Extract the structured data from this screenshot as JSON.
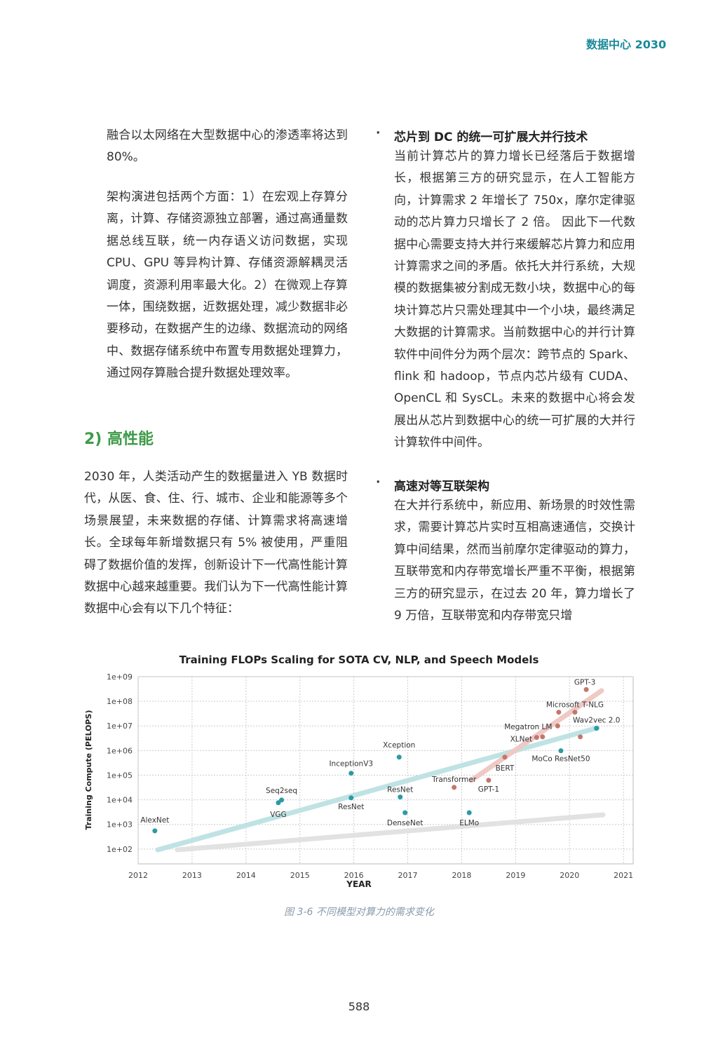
{
  "header": {
    "title": "数据中心 2030"
  },
  "left": {
    "paragraphs": [
      "融合以太网络在大型数据中心的渗透率将达到 80%。",
      "架构演进包括两个方面：1）在宏观上存算分离，计算、存储资源独立部署，通过高通量数据总线互联，统一内存语义访问数据，实现 CPU、GPU 等异构计算、存储资源解耦灵活调度，资源利用率最大化。2）在微观上存算一体，围绕数据，近数据处理，减少数据非必要移动，在数据产生的边缘、数据流动的网络中、数据存储系统中布置专用数据处理算力，通过网存算融合提升数据处理效率。"
    ],
    "section_heading": "2) 高性能",
    "section_text": "2030 年，人类活动产生的数据量进入 YB 数据时代，从医、食、住、行、城市、企业和能源等多个场景展望，未来数据的存储、计算需求将高速增长。全球每年新增数据只有 5% 被使用，严重阻碍了数据价值的发挥，创新设计下一代高性能计算数据中心越来越重要。我们认为下一代高性能计算数据中心会有以下几个特征："
  },
  "right": {
    "bullets": [
      {
        "title": "芯片到 DC 的统一可扩展大并行技术",
        "text": "当前计算芯片的算力增长已经落后于数据增长，根据第三方的研究显示，在人工智能方向，计算需求 2 年增长了 750x，摩尔定律驱动的芯片算力只增长了 2 倍。 因此下一代数据中心需要支持大并行来缓解芯片算力和应用计算需求之间的矛盾。依托大并行系统，大规模的数据集被分割成无数小块，数据中心的每块计算芯片只需处理其中一个小块，最终满足大数据的计算需求。当前数据中心的并行计算软件中间件分为两个层次：跨节点的 Spark、flink 和 hadoop，节点内芯片级有 CUDA、OpenCL 和 SysCL。未来的数据中心将会发展出从芯片到数据中心的统一可扩展的大并行计算软件中间件。"
      },
      {
        "title": "高速对等互联架构",
        "text": "在大并行系统中，新应用、新场景的时效性需求，需要计算芯片实时互相高速通信，交换计算中间结果，然而当前摩尔定律驱动的算力，互联带宽和内存带宽增长严重不平衡，根据第三方的研究显示，在过去 20 年，算力增长了 9 万倍，互联带宽和内存带宽只增"
      }
    ]
  },
  "chart_data": {
    "type": "scatter",
    "title": "Training FLOPs Scaling for SOTA CV, NLP, and Speech Models",
    "xlabel": "YEAR",
    "ylabel": "Training Compute (PELOPS)",
    "xlim": [
      2012,
      2021.18
    ],
    "ylim": [
      25,
      1000000000
    ],
    "log_y": true,
    "grid": true,
    "xticks": [
      2012,
      2013,
      2014,
      2015,
      2016,
      2017,
      2018,
      2019,
      2020,
      2021
    ],
    "yticks": [
      {
        "value": 100,
        "label": "1e+02"
      },
      {
        "value": 1000,
        "label": "1e+03"
      },
      {
        "value": 10000,
        "label": "1e+04"
      },
      {
        "value": 100000,
        "label": "1e+05"
      },
      {
        "value": 1000000,
        "label": "1e+06"
      },
      {
        "value": 10000000,
        "label": "1e+07"
      },
      {
        "value": 100000000,
        "label": "1e+08"
      },
      {
        "value": 1000000000,
        "label": "1e+09"
      }
    ],
    "series": [
      {
        "color": "#2a9ba3",
        "x": [
          2012.31,
          2014.66,
          2014.6,
          2015.95,
          2015.95,
          2016.84,
          2016.86,
          2016.95,
          2018.14,
          2019.84,
          2020.5
        ],
        "values": [
          550,
          9800,
          7600,
          120000,
          12000,
          540000,
          13000,
          3000,
          3000,
          980000,
          8000000
        ],
        "labels": [
          "AlexNet",
          "Seq2seq",
          "VGG",
          "InceptionV3",
          "ResNet",
          "Xception",
          "ResNet",
          "DenseNet",
          "ELMo",
          "MoCo ResNet50",
          "Wav2vec 2.0"
        ]
      },
      {
        "color": "#c4766c",
        "x": [
          2017.86,
          2018.5,
          2018.8,
          2019.39,
          2019.5,
          2019.78,
          2019.8,
          2020.1,
          2020.2,
          2020.31
        ],
        "values": [
          32000,
          62000,
          540000,
          3400000,
          3600000,
          10000000,
          36000000,
          36000000,
          3600000,
          300000000
        ],
        "labels": [
          "Transformer",
          "GPT-1",
          "BERT",
          "XLNet",
          null,
          "Megatron LM",
          null,
          "Microsoft T-NLG",
          null,
          "GPT-3"
        ]
      }
    ]
  },
  "caption": "图 3-6 不同模型对算力的需求变化",
  "page_number": "588"
}
